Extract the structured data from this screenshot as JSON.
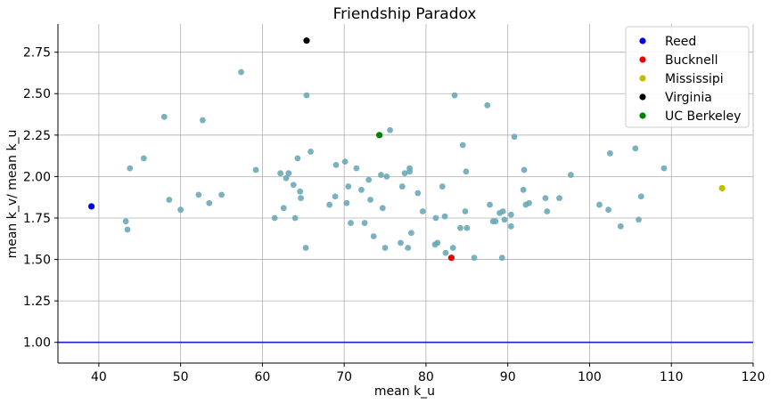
{
  "chart_data": {
    "type": "scatter",
    "title": "Friendship Paradox",
    "xlabel": "mean k_u",
    "ylabel": "mean k_v/ mean k_u",
    "xlim": [
      35,
      120
    ],
    "ylim": [
      0.875,
      2.92
    ],
    "xticks": [
      40,
      50,
      60,
      70,
      80,
      90,
      100,
      110,
      120
    ],
    "yticks": [
      1.0,
      1.25,
      1.5,
      1.75,
      2.0,
      2.25,
      2.5,
      2.75
    ],
    "ytick_labels": [
      "1.00",
      "1.25",
      "1.50",
      "1.75",
      "2.00",
      "2.25",
      "2.50",
      "2.75"
    ],
    "grid": true,
    "legend_position": "top-right",
    "reference_line": {
      "y": 1.0,
      "color": "#1f1fbf"
    },
    "base_color": "#6aa9b8",
    "points": [
      [
        43.3,
        1.73
      ],
      [
        43.5,
        1.68
      ],
      [
        43.8,
        2.05
      ],
      [
        45.5,
        2.11
      ],
      [
        48.0,
        2.36
      ],
      [
        48.6,
        1.86
      ],
      [
        50.0,
        1.8
      ],
      [
        52.2,
        1.89
      ],
      [
        52.7,
        2.34
      ],
      [
        53.5,
        1.84
      ],
      [
        55.0,
        1.89
      ],
      [
        57.4,
        2.63
      ],
      [
        59.2,
        2.04
      ],
      [
        61.5,
        1.75
      ],
      [
        62.2,
        2.02
      ],
      [
        62.6,
        1.81
      ],
      [
        62.9,
        1.99
      ],
      [
        63.2,
        2.02
      ],
      [
        63.8,
        1.95
      ],
      [
        64.0,
        1.75
      ],
      [
        64.3,
        2.11
      ],
      [
        64.6,
        1.91
      ],
      [
        64.7,
        1.87
      ],
      [
        65.3,
        1.57
      ],
      [
        65.4,
        2.49
      ],
      [
        65.9,
        2.15
      ],
      [
        68.2,
        1.83
      ],
      [
        68.9,
        1.88
      ],
      [
        69.0,
        2.07
      ],
      [
        70.1,
        2.09
      ],
      [
        70.3,
        1.84
      ],
      [
        70.5,
        1.94
      ],
      [
        70.8,
        1.72
      ],
      [
        71.5,
        2.05
      ],
      [
        72.1,
        1.92
      ],
      [
        72.5,
        1.72
      ],
      [
        73.0,
        1.98
      ],
      [
        73.2,
        1.86
      ],
      [
        73.6,
        1.64
      ],
      [
        74.5,
        2.01
      ],
      [
        74.7,
        1.81
      ],
      [
        75.0,
        1.57
      ],
      [
        75.2,
        2.0
      ],
      [
        75.6,
        2.28
      ],
      [
        76.9,
        1.6
      ],
      [
        77.1,
        1.94
      ],
      [
        77.4,
        2.02
      ],
      [
        77.8,
        1.57
      ],
      [
        78.0,
        2.03
      ],
      [
        78.0,
        2.05
      ],
      [
        78.2,
        1.66
      ],
      [
        79.0,
        1.9
      ],
      [
        79.6,
        1.79
      ],
      [
        81.1,
        1.59
      ],
      [
        81.2,
        1.75
      ],
      [
        81.4,
        1.6
      ],
      [
        82.0,
        1.94
      ],
      [
        82.3,
        1.76
      ],
      [
        82.4,
        1.54
      ],
      [
        83.3,
        1.57
      ],
      [
        83.5,
        2.49
      ],
      [
        84.2,
        1.69
      ],
      [
        84.5,
        2.19
      ],
      [
        84.8,
        1.79
      ],
      [
        84.9,
        2.03
      ],
      [
        85.0,
        1.69
      ],
      [
        85.9,
        1.51
      ],
      [
        87.5,
        2.43
      ],
      [
        87.8,
        1.83
      ],
      [
        88.2,
        1.73
      ],
      [
        88.5,
        1.73
      ],
      [
        89.0,
        1.78
      ],
      [
        89.3,
        1.51
      ],
      [
        89.4,
        1.79
      ],
      [
        89.6,
        1.74
      ],
      [
        90.4,
        1.7
      ],
      [
        90.4,
        1.77
      ],
      [
        90.8,
        2.24
      ],
      [
        91.9,
        1.92
      ],
      [
        92.0,
        2.04
      ],
      [
        92.2,
        1.83
      ],
      [
        92.6,
        1.84
      ],
      [
        94.6,
        1.87
      ],
      [
        94.8,
        1.79
      ],
      [
        96.3,
        1.87
      ],
      [
        97.7,
        2.01
      ],
      [
        101.2,
        1.83
      ],
      [
        102.3,
        1.8
      ],
      [
        102.5,
        2.14
      ],
      [
        103.8,
        1.7
      ],
      [
        105.6,
        2.17
      ],
      [
        106.0,
        1.74
      ],
      [
        106.3,
        1.88
      ],
      [
        109.1,
        2.05
      ]
    ],
    "highlighted": [
      {
        "name": "Reed",
        "x": 39.1,
        "y": 1.82,
        "color": "#0000ee"
      },
      {
        "name": "Bucknell",
        "x": 83.1,
        "y": 1.51,
        "color": "#ee0000"
      },
      {
        "name": "Mississipi",
        "x": 116.2,
        "y": 1.93,
        "color": "#bfbf00"
      },
      {
        "name": "Virginia",
        "x": 65.4,
        "y": 2.82,
        "color": "#000000"
      },
      {
        "name": "UC Berkeley",
        "x": 74.3,
        "y": 2.25,
        "color": "#008000"
      }
    ]
  }
}
